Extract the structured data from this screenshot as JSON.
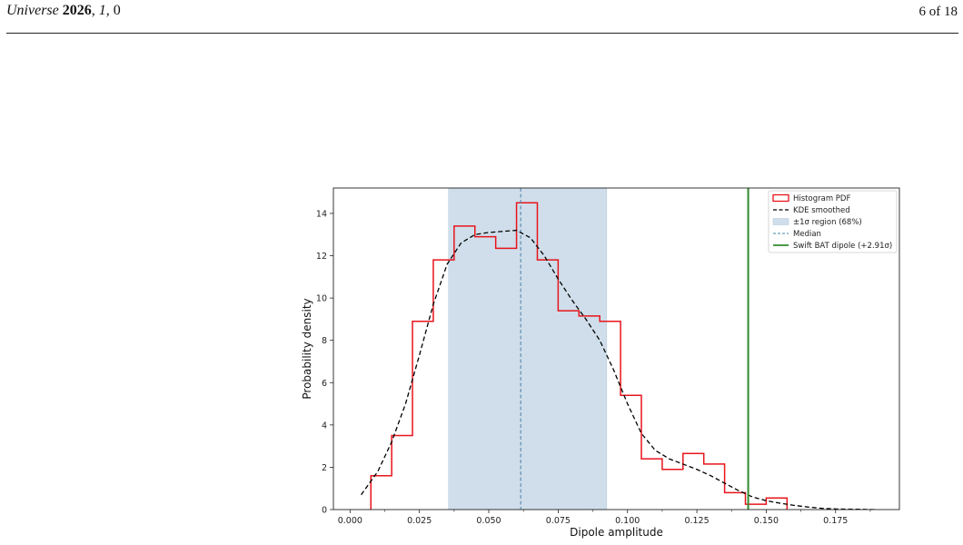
{
  "header": {
    "journal": "Universe",
    "year": "2026",
    "volume": "1",
    "article": "0",
    "page": "6 of 18"
  },
  "colors": {
    "histogram": "#e8141b",
    "kde": "#000000",
    "band": "#cfdeea",
    "median": "#4a7fa8",
    "bat": "#2e8b2e"
  },
  "chart_data": {
    "type": "bar",
    "xlabel": "Dipole amplitude",
    "ylabel": "Probability density",
    "xlim": [
      -0.006,
      0.198
    ],
    "ylim": [
      0,
      15.2
    ],
    "xticks": [
      0.0,
      0.025,
      0.05,
      0.075,
      0.1,
      0.125,
      0.15,
      0.175
    ],
    "xtick_labels": [
      "0.000",
      "0.025",
      "0.050",
      "0.075",
      "0.100",
      "0.125",
      "0.150",
      "0.175"
    ],
    "yticks": [
      0,
      2,
      4,
      6,
      8,
      10,
      12,
      14
    ],
    "ytick_labels": [
      "0",
      "2",
      "4",
      "6",
      "8",
      "10",
      "12",
      "14"
    ],
    "histogram": {
      "name": "Histogram PDF",
      "bin_edges": [
        0.0075,
        0.015,
        0.0225,
        0.03,
        0.0375,
        0.045,
        0.0525,
        0.06,
        0.0675,
        0.075,
        0.0825,
        0.09,
        0.0975,
        0.105,
        0.1125,
        0.12,
        0.1275,
        0.135,
        0.1425,
        0.15,
        0.1575
      ],
      "densities": [
        1.6,
        3.5,
        8.9,
        11.8,
        13.4,
        12.9,
        12.35,
        14.5,
        11.8,
        9.4,
        9.15,
        8.9,
        5.4,
        2.4,
        1.9,
        2.65,
        2.15,
        0.8,
        0.25,
        0.55
      ]
    },
    "kde": {
      "name": "KDE smoothed",
      "x": [
        0.004,
        0.01,
        0.015,
        0.02,
        0.025,
        0.03,
        0.035,
        0.04,
        0.045,
        0.05,
        0.055,
        0.06,
        0.065,
        0.07,
        0.075,
        0.08,
        0.085,
        0.09,
        0.095,
        0.1,
        0.105,
        0.11,
        0.115,
        0.12,
        0.125,
        0.13,
        0.135,
        0.14,
        0.145,
        0.15,
        0.155,
        0.16,
        0.165,
        0.17,
        0.175,
        0.18,
        0.185,
        0.189
      ],
      "y": [
        0.7,
        1.8,
        3.2,
        5.0,
        7.3,
        9.7,
        11.6,
        12.6,
        13.0,
        13.1,
        13.15,
        13.2,
        12.85,
        12.0,
        10.9,
        9.9,
        9.0,
        8.0,
        6.6,
        5.0,
        3.6,
        2.8,
        2.4,
        2.15,
        1.9,
        1.6,
        1.25,
        0.9,
        0.6,
        0.42,
        0.3,
        0.2,
        0.12,
        0.06,
        0.03,
        0.02,
        0.01,
        0.0
      ]
    },
    "band": {
      "name": "±1σ region (68%)",
      "range": [
        0.0355,
        0.0925
      ]
    },
    "median": {
      "name": "Median",
      "x": 0.0615
    },
    "bat_dipole": {
      "name": "Swift BAT dipole (+2.91σ)",
      "x": 0.1435
    },
    "legend": {
      "position": "top-right",
      "entries": [
        "Histogram PDF",
        "KDE smoothed",
        "±1σ region (68%)",
        "Median",
        "Swift BAT dipole (+2.91σ)"
      ]
    }
  }
}
